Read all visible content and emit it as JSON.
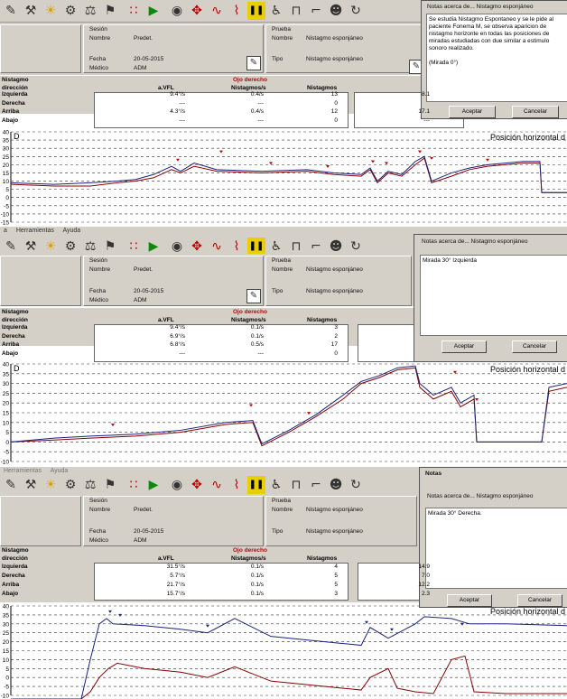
{
  "toolbar_icons": [
    "tool-a-icon",
    "tool-b-icon",
    "bulb-icon",
    "tool-c-icon",
    "tool-d-icon",
    "tool-e-icon",
    "dots-icon",
    "play-icon",
    "sound-icon",
    "move-icon",
    "wave-icon",
    "caloric-icon",
    "pause-icon",
    "sit-icon",
    "bed-icon",
    "chair-icon",
    "head-icon",
    "rotate-icon"
  ],
  "panels": [
    {
      "menu": [],
      "session": {
        "title": "Sesión",
        "name_label": "Nombre",
        "name": "Predet.",
        "date_label": "Fecha",
        "date": "20-05-2015",
        "doctor_label": "Médico",
        "doctor": "ADM"
      },
      "test": {
        "title": "Prueba",
        "name_label": "Nombre",
        "name": "Nistagmo esponjáneo",
        "type_label": "Tipo",
        "type": "Nistagmo esponjáneo"
      },
      "table": {
        "title": "Nistagmo",
        "eye": "Ojo derecho",
        "headers": [
          "dirección",
          "a.VFL",
          "Nistagmos/s",
          "Nistagmos"
        ],
        "rows": [
          {
            "dir": "Izquierda",
            "vfl": "9.4°/s",
            "rate": "0.4/s",
            "count": "13",
            "extra": "8.1"
          },
          {
            "dir": "Derecha",
            "vfl": "---",
            "rate": "---",
            "count": "0",
            "extra": ""
          },
          {
            "dir": "Arriba",
            "vfl": "4.3°/s",
            "rate": "0.4/s",
            "count": "12",
            "extra": "17.1"
          },
          {
            "dir": "Abajo",
            "vfl": "---",
            "rate": "---",
            "count": "0",
            "extra": "---"
          }
        ]
      },
      "dialog": {
        "title": "Notas acerca de... Nistagmo esponjáneo",
        "body": "Se estudia Nistagmo Espontaneo y se le pide al paciente Fonema M, se observa aparicion de nistagmo horizonte en todas las posiciones de miradas estudiadas con due similar a estimulo sonoro realizado.",
        "body2": "(Mirada 0°)",
        "ok": "Aceptar",
        "cancel": "Cancelar"
      },
      "chart": {
        "label": "D",
        "title": "Posición horizontal d",
        "ticks": [
          40,
          35,
          30,
          25,
          20,
          15,
          10,
          5,
          0,
          -5,
          -10,
          -15
        ]
      }
    },
    {
      "menu": [
        "a",
        "Herramientas",
        "Ayuda"
      ],
      "session": {
        "title": "Sesión",
        "name_label": "Nombre",
        "name": "Predet.",
        "date_label": "Fecha",
        "date": "20-05-2015",
        "doctor_label": "Médico",
        "doctor": "ADM"
      },
      "test": {
        "title": "Prueba",
        "name_label": "Nombre",
        "name": "Nistagmo esponjáneo",
        "type_label": "Tipo",
        "type": "Nistagmo esponjáneo"
      },
      "table": {
        "title": "Nistagmo",
        "eye": "Ojo derecho",
        "headers": [
          "dirección",
          "a.VFL",
          "Nistagmos/s",
          "Nistagmos"
        ],
        "rows": [
          {
            "dir": "Izquierda",
            "vfl": "9.4°/s",
            "rate": "0.1/s",
            "count": "3",
            "extra": ""
          },
          {
            "dir": "Derecha",
            "vfl": "6.9°/s",
            "rate": "0.1/s",
            "count": "2",
            "extra": ""
          },
          {
            "dir": "Arriba",
            "vfl": "6.8°/s",
            "rate": "0.5/s",
            "count": "17",
            "extra": ""
          },
          {
            "dir": "Abajo",
            "vfl": "---",
            "rate": "---",
            "count": "0",
            "extra": ""
          }
        ]
      },
      "dialog": {
        "title": "Notas acerca de... Nistagmo esponjáneo",
        "body": "Mirada 30° Izquierda",
        "body2": "",
        "ok": "Aceptar",
        "cancel": "Cancelar"
      },
      "chart": {
        "label": "D",
        "title": "Posición horizontal d",
        "ticks": [
          40,
          35,
          30,
          25,
          20,
          15,
          10,
          5,
          0,
          -5,
          -10
        ]
      }
    },
    {
      "menu": [
        "Herramientas",
        "Ayuda"
      ],
      "session": {
        "title": "Sesión",
        "name_label": "Nombre",
        "name": "Predet.",
        "date_label": "Fecha",
        "date": "20-05-2015",
        "doctor_label": "Médico",
        "doctor": "ADM"
      },
      "test": {
        "title": "Prueba",
        "name_label": "Nombre",
        "name": "Nistagmo esponjáneo",
        "type_label": "Tipo",
        "type": "Nistagmo esponjáneo"
      },
      "table": {
        "title": "Nistagmo",
        "eye": "Ojo derecho",
        "headers": [
          "dirección",
          "a.VFL",
          "Nistagmos/s",
          "Nistagmos"
        ],
        "rows": [
          {
            "dir": "Izquierda",
            "vfl": "31.5°/s",
            "rate": "0.1/s",
            "count": "4",
            "extra": "14.9"
          },
          {
            "dir": "Derecha",
            "vfl": "5.7°/s",
            "rate": "0.1/s",
            "count": "5",
            "extra": "7.0"
          },
          {
            "dir": "Arriba",
            "vfl": "21.7°/s",
            "rate": "0.1/s",
            "count": "5",
            "extra": "12.2"
          },
          {
            "dir": "Abajo",
            "vfl": "15.7°/s",
            "rate": "0.1/s",
            "count": "3",
            "extra": "2.3"
          }
        ]
      },
      "dialog": {
        "window_title": "Notas",
        "title": "Notas acerca de... Nistagmo esponjáneo",
        "body": "Mirada 30° Derecha.",
        "body2": "",
        "ok": "Aceptar",
        "cancel": "Cancelar"
      },
      "chart": {
        "label": "",
        "title": "Posición horizontal d",
        "ticks": [
          40,
          35,
          30,
          25,
          20,
          15,
          10,
          5,
          0,
          -5,
          -10
        ]
      }
    }
  ],
  "colors": {
    "eye_trace": "#1a237e",
    "ref_trace": "#8b0000",
    "marker": "#c00000",
    "grid": "#333333",
    "window_bg": "#d4d0c8"
  }
}
